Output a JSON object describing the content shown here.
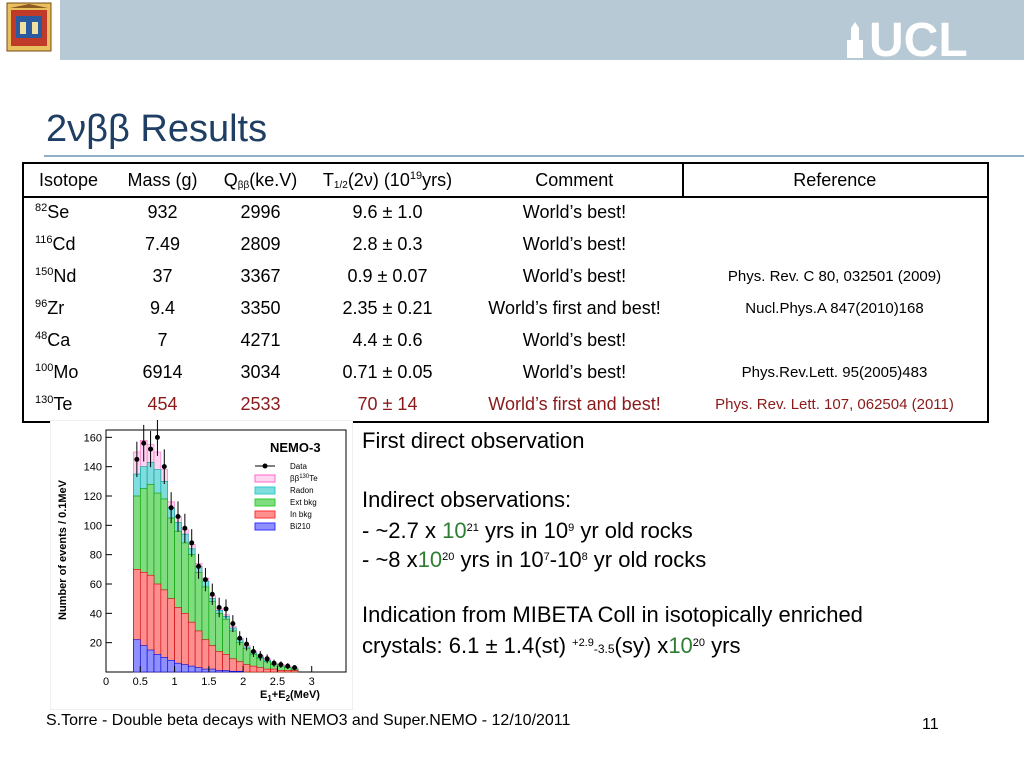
{
  "header": {
    "logo_text": "UCL",
    "crest_icon": "university-crest-icon"
  },
  "title": {
    "prefix": "2νββ Results"
  },
  "table": {
    "headers": {
      "isotope": "Isotope",
      "mass": "Mass (g)",
      "q_main": "Q",
      "q_sub": "ββ",
      "q_unit": "(ke.V)",
      "t_main": "T",
      "t_sub": "1/2",
      "t_nu": "(2ν) (10",
      "t_exp": "19",
      "t_unit": "yrs)",
      "comment": "Comment",
      "reference": "Reference"
    },
    "rows": [
      {
        "mass_number": "82",
        "element": "Se",
        "mass": "932",
        "q": "2996",
        "t": "9.6 ± 1.0",
        "comment": "World’s best!",
        "reference": ""
      },
      {
        "mass_number": "116",
        "element": "Cd",
        "mass": "7.49",
        "q": "2809",
        "t": "2.8 ± 0.3",
        "comment": "World’s best!",
        "reference": ""
      },
      {
        "mass_number": "150",
        "element": "Nd",
        "mass": "37",
        "q": "3367",
        "t": "0.9 ± 0.07",
        "comment": "World’s best!",
        "reference": "Phys. Rev. C 80, 032501 (2009)"
      },
      {
        "mass_number": "96",
        "element": "Zr",
        "mass": "9.4",
        "q": "3350",
        "t": "2.35 ± 0.21",
        "comment": "World’s first and best!",
        "reference": "Nucl.Phys.A 847(2010)168"
      },
      {
        "mass_number": "48",
        "element": "Ca",
        "mass": "7",
        "q": "4271",
        "t": "4.4 ± 0.6",
        "comment": "World’s best!",
        "reference": ""
      },
      {
        "mass_number": "100",
        "element": "Mo",
        "mass": "6914",
        "q": "3034",
        "t": "0.71 ± 0.05",
        "comment": "World’s best!",
        "reference": "Phys.Rev.Lett. 95(2005)483"
      },
      {
        "mass_number": "130",
        "element": "Te",
        "mass": "454",
        "q": "2533",
        "t": "70 ± 14",
        "comment": "World’s first and best!",
        "reference": "Phys. Rev. Lett. 107, 062504 (2011)"
      }
    ]
  },
  "plot": {
    "label": "NEMO-3",
    "ylabel": "Number of events / 0.1MeV",
    "xlabel_main": "E",
    "xlabel_1": "1",
    "xlabel_plus": "+E",
    "xlabel_2": "2",
    "xlabel_unit": "(MeV)",
    "legend": {
      "data": "Data",
      "bb": "ββ",
      "bb_sup": "130",
      "bb_te": "Te",
      "radon": "Radon",
      "ext": "Ext bkg",
      "inbkg": "In bkg",
      "bi": "Bi210"
    },
    "colors": {
      "bb": "#ff66cc",
      "radon": "#33cccc",
      "ext": "#33cc33",
      "inbkg": "#ff3333",
      "bi": "#3333ff"
    }
  },
  "chart_data": {
    "type": "bar",
    "title": "NEMO-3",
    "xlabel": "E1+E2(MeV)",
    "ylabel": "Number of events / 0.1MeV",
    "xlim": [
      0,
      3.5
    ],
    "ylim": [
      0,
      165
    ],
    "x_ticks": [
      "0",
      "0.5",
      "1",
      "1.5",
      "2",
      "2.5",
      "3"
    ],
    "y_ticks": [
      "20",
      "40",
      "60",
      "80",
      "100",
      "120",
      "140",
      "160"
    ],
    "x": [
      0.45,
      0.55,
      0.65,
      0.75,
      0.85,
      0.95,
      1.05,
      1.15,
      1.25,
      1.35,
      1.45,
      1.55,
      1.65,
      1.75,
      1.85,
      1.95,
      2.05,
      2.15,
      2.25,
      2.35,
      2.45,
      2.55,
      2.65,
      2.75
    ],
    "series": [
      {
        "name": "Data",
        "values": [
          145,
          156,
          152,
          160,
          140,
          112,
          106,
          98,
          88,
          72,
          63,
          53,
          44,
          43,
          33,
          23,
          19,
          14,
          11,
          9,
          6,
          5,
          4,
          3
        ]
      },
      {
        "name": "Bi210",
        "values": [
          22,
          18,
          15,
          12,
          10,
          8,
          6,
          5,
          4,
          3,
          2,
          2,
          1,
          1,
          0.5,
          0.5,
          0,
          0,
          0,
          0,
          0,
          0,
          0,
          0
        ]
      },
      {
        "name": "In bkg",
        "values": [
          70,
          68,
          66,
          60,
          56,
          50,
          44,
          40,
          34,
          28,
          22,
          18,
          14,
          12,
          9,
          7,
          5,
          4,
          3,
          2,
          2,
          1,
          1,
          1
        ]
      },
      {
        "name": "Ext bkg",
        "values": [
          120,
          125,
          128,
          122,
          118,
          105,
          96,
          88,
          80,
          68,
          58,
          48,
          40,
          36,
          28,
          20,
          16,
          12,
          9,
          7,
          5,
          4,
          3,
          2
        ]
      },
      {
        "name": "Radon",
        "values": [
          135,
          140,
          143,
          138,
          130,
          112,
          102,
          94,
          84,
          72,
          62,
          50,
          42,
          38,
          30,
          22,
          17,
          13,
          10,
          8,
          5,
          4,
          3,
          2
        ]
      },
      {
        "name": "ββ 130Te",
        "values": [
          150,
          158,
          155,
          150,
          138,
          116,
          106,
          97,
          87,
          74,
          64,
          52,
          43,
          39,
          31,
          23,
          18,
          14,
          11,
          9,
          6,
          5,
          4,
          3
        ]
      }
    ]
  },
  "observations": {
    "first": "First direct observation",
    "indirect_title": "Indirect observations:",
    "line1_a": "- ~2.7 x ",
    "line1_b": "10",
    "line1_c": "21",
    "line1_d": " yrs in 10",
    "line1_e": "9",
    "line1_f": " yr old rocks",
    "line2_a": "- ~8 x",
    "line2_b": "10",
    "line2_c": "20",
    "line2_d": " yrs in 10",
    "line2_e": "7",
    "line2_f": "-10",
    "line2_g": "8",
    "line2_h": " yr old rocks",
    "ind_line1": "Indication from MIBETA Coll in isotopically enriched",
    "ind_line2_a": "crystals: 6.1 ± 1.4(st) ",
    "ind_line2_b": "+2.9",
    "ind_line2_c": "-3.5",
    "ind_line2_d": "(sy) x",
    "ind_line2_e": "10",
    "ind_line2_f": "20",
    "ind_line2_g": " yrs"
  },
  "footer": {
    "text": "S.Torre - Double beta decays with NEMO3 and Super.NEMO - 12/10/2011",
    "page": "11"
  }
}
